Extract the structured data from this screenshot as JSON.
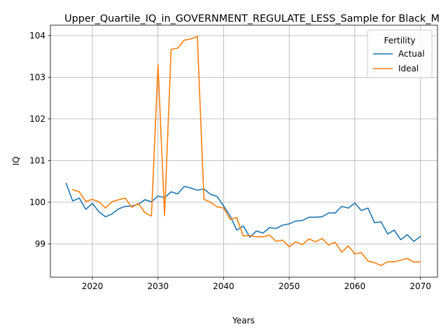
{
  "chart_data": {
    "type": "line",
    "title": "Upper_Quartile_IQ_in_GOVERNMENT_REGULATE_LESS_Sample for Black_M",
    "xlabel": "Years",
    "ylabel": "IQ",
    "xlim": [
      2013.6,
      2072.6
    ],
    "ylim": [
      98.2,
      104.25
    ],
    "xticks": [
      2020,
      2030,
      2040,
      2050,
      2060,
      2070
    ],
    "yticks": [
      99,
      100,
      101,
      102,
      103,
      104
    ],
    "grid": true,
    "legend": {
      "title": "Fertility",
      "position": "top-right"
    },
    "series": [
      {
        "name": "Actual",
        "color": "#1f77b4",
        "x": [
          2016,
          2017,
          2018,
          2019,
          2020,
          2021,
          2022,
          2023,
          2024,
          2025,
          2026,
          2027,
          2028,
          2029,
          2030,
          2031,
          2032,
          2033,
          2034,
          2035,
          2036,
          2037,
          2038,
          2039,
          2040,
          2041,
          2042,
          2043,
          2044,
          2045,
          2046,
          2047,
          2048,
          2049,
          2050,
          2051,
          2052,
          2053,
          2054,
          2055,
          2056,
          2057,
          2058,
          2059,
          2060,
          2061,
          2062,
          2063,
          2064,
          2065,
          2066,
          2067,
          2068,
          2069,
          2070
        ],
        "values": [
          100.45,
          100.03,
          100.1,
          99.83,
          99.97,
          99.77,
          99.65,
          99.72,
          99.84,
          99.9,
          99.91,
          99.95,
          100.06,
          100.01,
          100.15,
          100.11,
          100.25,
          100.2,
          100.38,
          100.34,
          100.29,
          100.32,
          100.19,
          100.14,
          99.91,
          99.67,
          99.33,
          99.43,
          99.16,
          99.31,
          99.26,
          99.39,
          99.37,
          99.45,
          99.48,
          99.55,
          99.56,
          99.64,
          99.64,
          99.65,
          99.74,
          99.74,
          99.9,
          99.86,
          99.98,
          99.8,
          99.86,
          99.51,
          99.53,
          99.24,
          99.33,
          99.1,
          99.22,
          99.06,
          99.18
        ]
      },
      {
        "name": "Ideal",
        "color": "#ff7f0e",
        "x": [
          2017,
          2018,
          2019,
          2020,
          2021,
          2022,
          2023,
          2024,
          2025,
          2026,
          2027,
          2028,
          2029,
          2030,
          2031,
          2032,
          2033,
          2034,
          2035,
          2036,
          2037,
          2038,
          2039,
          2040,
          2041,
          2042,
          2043,
          2044,
          2045,
          2046,
          2047,
          2048,
          2049,
          2050,
          2051,
          2052,
          2053,
          2054,
          2055,
          2056,
          2057,
          2058,
          2059,
          2060,
          2061,
          2062,
          2063,
          2064,
          2065,
          2066,
          2067,
          2068,
          2069,
          2070
        ],
        "values": [
          100.3,
          100.25,
          100.02,
          100.07,
          100.01,
          99.86,
          100.01,
          100.06,
          100.1,
          99.88,
          99.97,
          99.75,
          99.67,
          103.3,
          99.68,
          103.67,
          103.7,
          103.89,
          103.92,
          103.98,
          100.07,
          100.0,
          99.89,
          99.86,
          99.59,
          99.63,
          99.19,
          99.2,
          99.17,
          99.17,
          99.21,
          99.06,
          99.09,
          98.93,
          99.05,
          98.98,
          99.12,
          99.05,
          99.13,
          98.97,
          99.04,
          98.8,
          98.95,
          98.76,
          98.79,
          98.59,
          98.55,
          98.48,
          98.57,
          98.57,
          98.61,
          98.65,
          98.56,
          98.57
        ]
      }
    ]
  }
}
